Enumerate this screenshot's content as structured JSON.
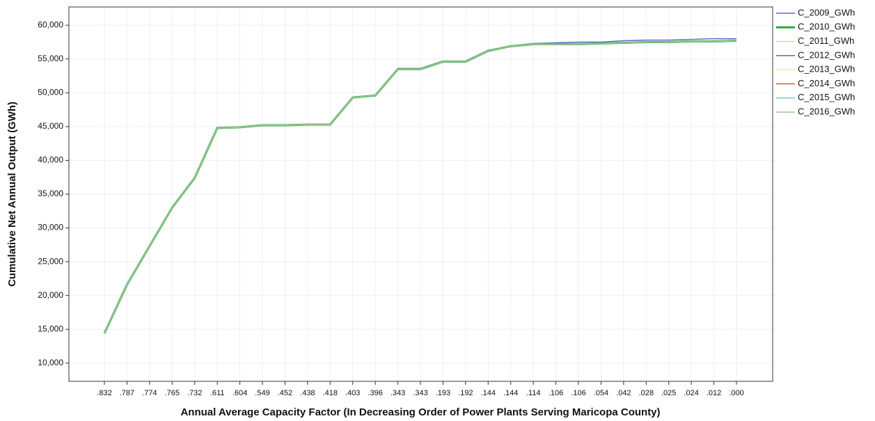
{
  "chart_data": {
    "type": "line",
    "x_label": "Annual Average Capacity Factor (In Decreasing Order of Power Plants Serving Maricopa County)",
    "y_label": "Cumulative Net Annual Output (GWh)",
    "categories": [
      ".832",
      ".787",
      ".774",
      ".765",
      ".732",
      ".611",
      ".604",
      ".549",
      ".452",
      ".438",
      ".418",
      ".403",
      ".396",
      ".343",
      ".343",
      ".193",
      ".192",
      ".144",
      ".144",
      ".114",
      ".106",
      ".106",
      ".054",
      ".042",
      ".028",
      ".025",
      ".024",
      ".012",
      ".000"
    ],
    "ylim": [
      7300,
      62700
    ],
    "yticks": [
      {
        "value": 10000,
        "label": "10,000"
      },
      {
        "value": 15000,
        "label": "15,000"
      },
      {
        "value": 20000,
        "label": "20,000"
      },
      {
        "value": 25000,
        "label": "25,000"
      },
      {
        "value": 30000,
        "label": "30,000"
      },
      {
        "value": 35000,
        "label": "35,000"
      },
      {
        "value": 40000,
        "label": "40,000"
      },
      {
        "value": 45000,
        "label": "45,000"
      },
      {
        "value": 50000,
        "label": "50,000"
      },
      {
        "value": 55000,
        "label": "55,000"
      },
      {
        "value": 60000,
        "label": "60,000"
      }
    ],
    "grid": true,
    "legend": "right",
    "series": [
      {
        "name": "C_2009_GWh",
        "color": "#5b6fc4",
        "values": [
          14400,
          21600,
          27300,
          33000,
          37400,
          44800,
          44900,
          45200,
          45200,
          45300,
          45300,
          49300,
          49600,
          53600,
          53600,
          54700,
          54700,
          56300,
          56900,
          57300,
          57400,
          57500,
          57500,
          57700,
          57800,
          57800,
          57900,
          58000,
          58000
        ]
      },
      {
        "name": "C_2010_GWh",
        "color": "#2aa83d",
        "values": [
          14400,
          21600,
          27300,
          33000,
          37400,
          44800,
          44900,
          45200,
          45200,
          45300,
          45300,
          49300,
          49600,
          53500,
          53500,
          54600,
          54600,
          56200,
          56900,
          57200,
          57200,
          57200,
          57300,
          57400,
          57500,
          57500,
          57600,
          57600,
          57700
        ]
      },
      {
        "name": "C_2011_GWh",
        "color": "#d8d3a6",
        "values": [
          14400,
          21600,
          27300,
          33000,
          37400,
          44800,
          44900,
          45200,
          45200,
          45300,
          45300,
          49300,
          49600,
          53500,
          53500,
          54600,
          54600,
          56200,
          56900,
          57200,
          57200,
          57200,
          57300,
          57400,
          57500,
          57500,
          57600,
          57600,
          57700
        ]
      },
      {
        "name": "C_2012_GWh",
        "color": "#8e4fa0",
        "values": [
          14400,
          21600,
          27300,
          33000,
          37400,
          44800,
          44900,
          45200,
          45200,
          45300,
          45300,
          49300,
          49600,
          53500,
          53500,
          54600,
          54600,
          56200,
          56900,
          57200,
          57200,
          57200,
          57300,
          57400,
          57500,
          57500,
          57600,
          57600,
          57700
        ]
      },
      {
        "name": "C_2013_GWh",
        "color": "#f3ee7c",
        "values": [
          14400,
          21600,
          27300,
          33000,
          37400,
          44800,
          44900,
          45200,
          45200,
          45300,
          45300,
          49300,
          49600,
          53500,
          53500,
          54600,
          54600,
          56200,
          56900,
          57200,
          57200,
          57200,
          57300,
          57400,
          57500,
          57500,
          57600,
          57600,
          57700
        ]
      },
      {
        "name": "C_2014_GWh",
        "color": "#e0533f",
        "values": [
          14400,
          21600,
          27300,
          33000,
          37400,
          44800,
          44900,
          45200,
          45200,
          45300,
          45300,
          49300,
          49600,
          53500,
          53500,
          54600,
          54600,
          56200,
          56900,
          57200,
          57200,
          57200,
          57300,
          57400,
          57500,
          57500,
          57600,
          57600,
          57700
        ]
      },
      {
        "name": "C_2015_GWh",
        "color": "#6fcfd0",
        "values": [
          14400,
          21600,
          27300,
          33000,
          37400,
          44800,
          44900,
          45200,
          45200,
          45300,
          45300,
          49300,
          49600,
          53500,
          53500,
          54600,
          54600,
          56200,
          56900,
          57200,
          57200,
          57200,
          57300,
          57400,
          57500,
          57500,
          57600,
          57600,
          57700
        ]
      },
      {
        "name": "C_2016_GWh",
        "color": "#9dc89a",
        "values": [
          14400,
          21600,
          27300,
          33000,
          37400,
          44800,
          44900,
          45200,
          45200,
          45300,
          45300,
          49300,
          49600,
          53500,
          53500,
          54600,
          54600,
          56200,
          56900,
          57200,
          57200,
          57200,
          57300,
          57400,
          57500,
          57500,
          57600,
          57600,
          57700
        ]
      }
    ]
  }
}
